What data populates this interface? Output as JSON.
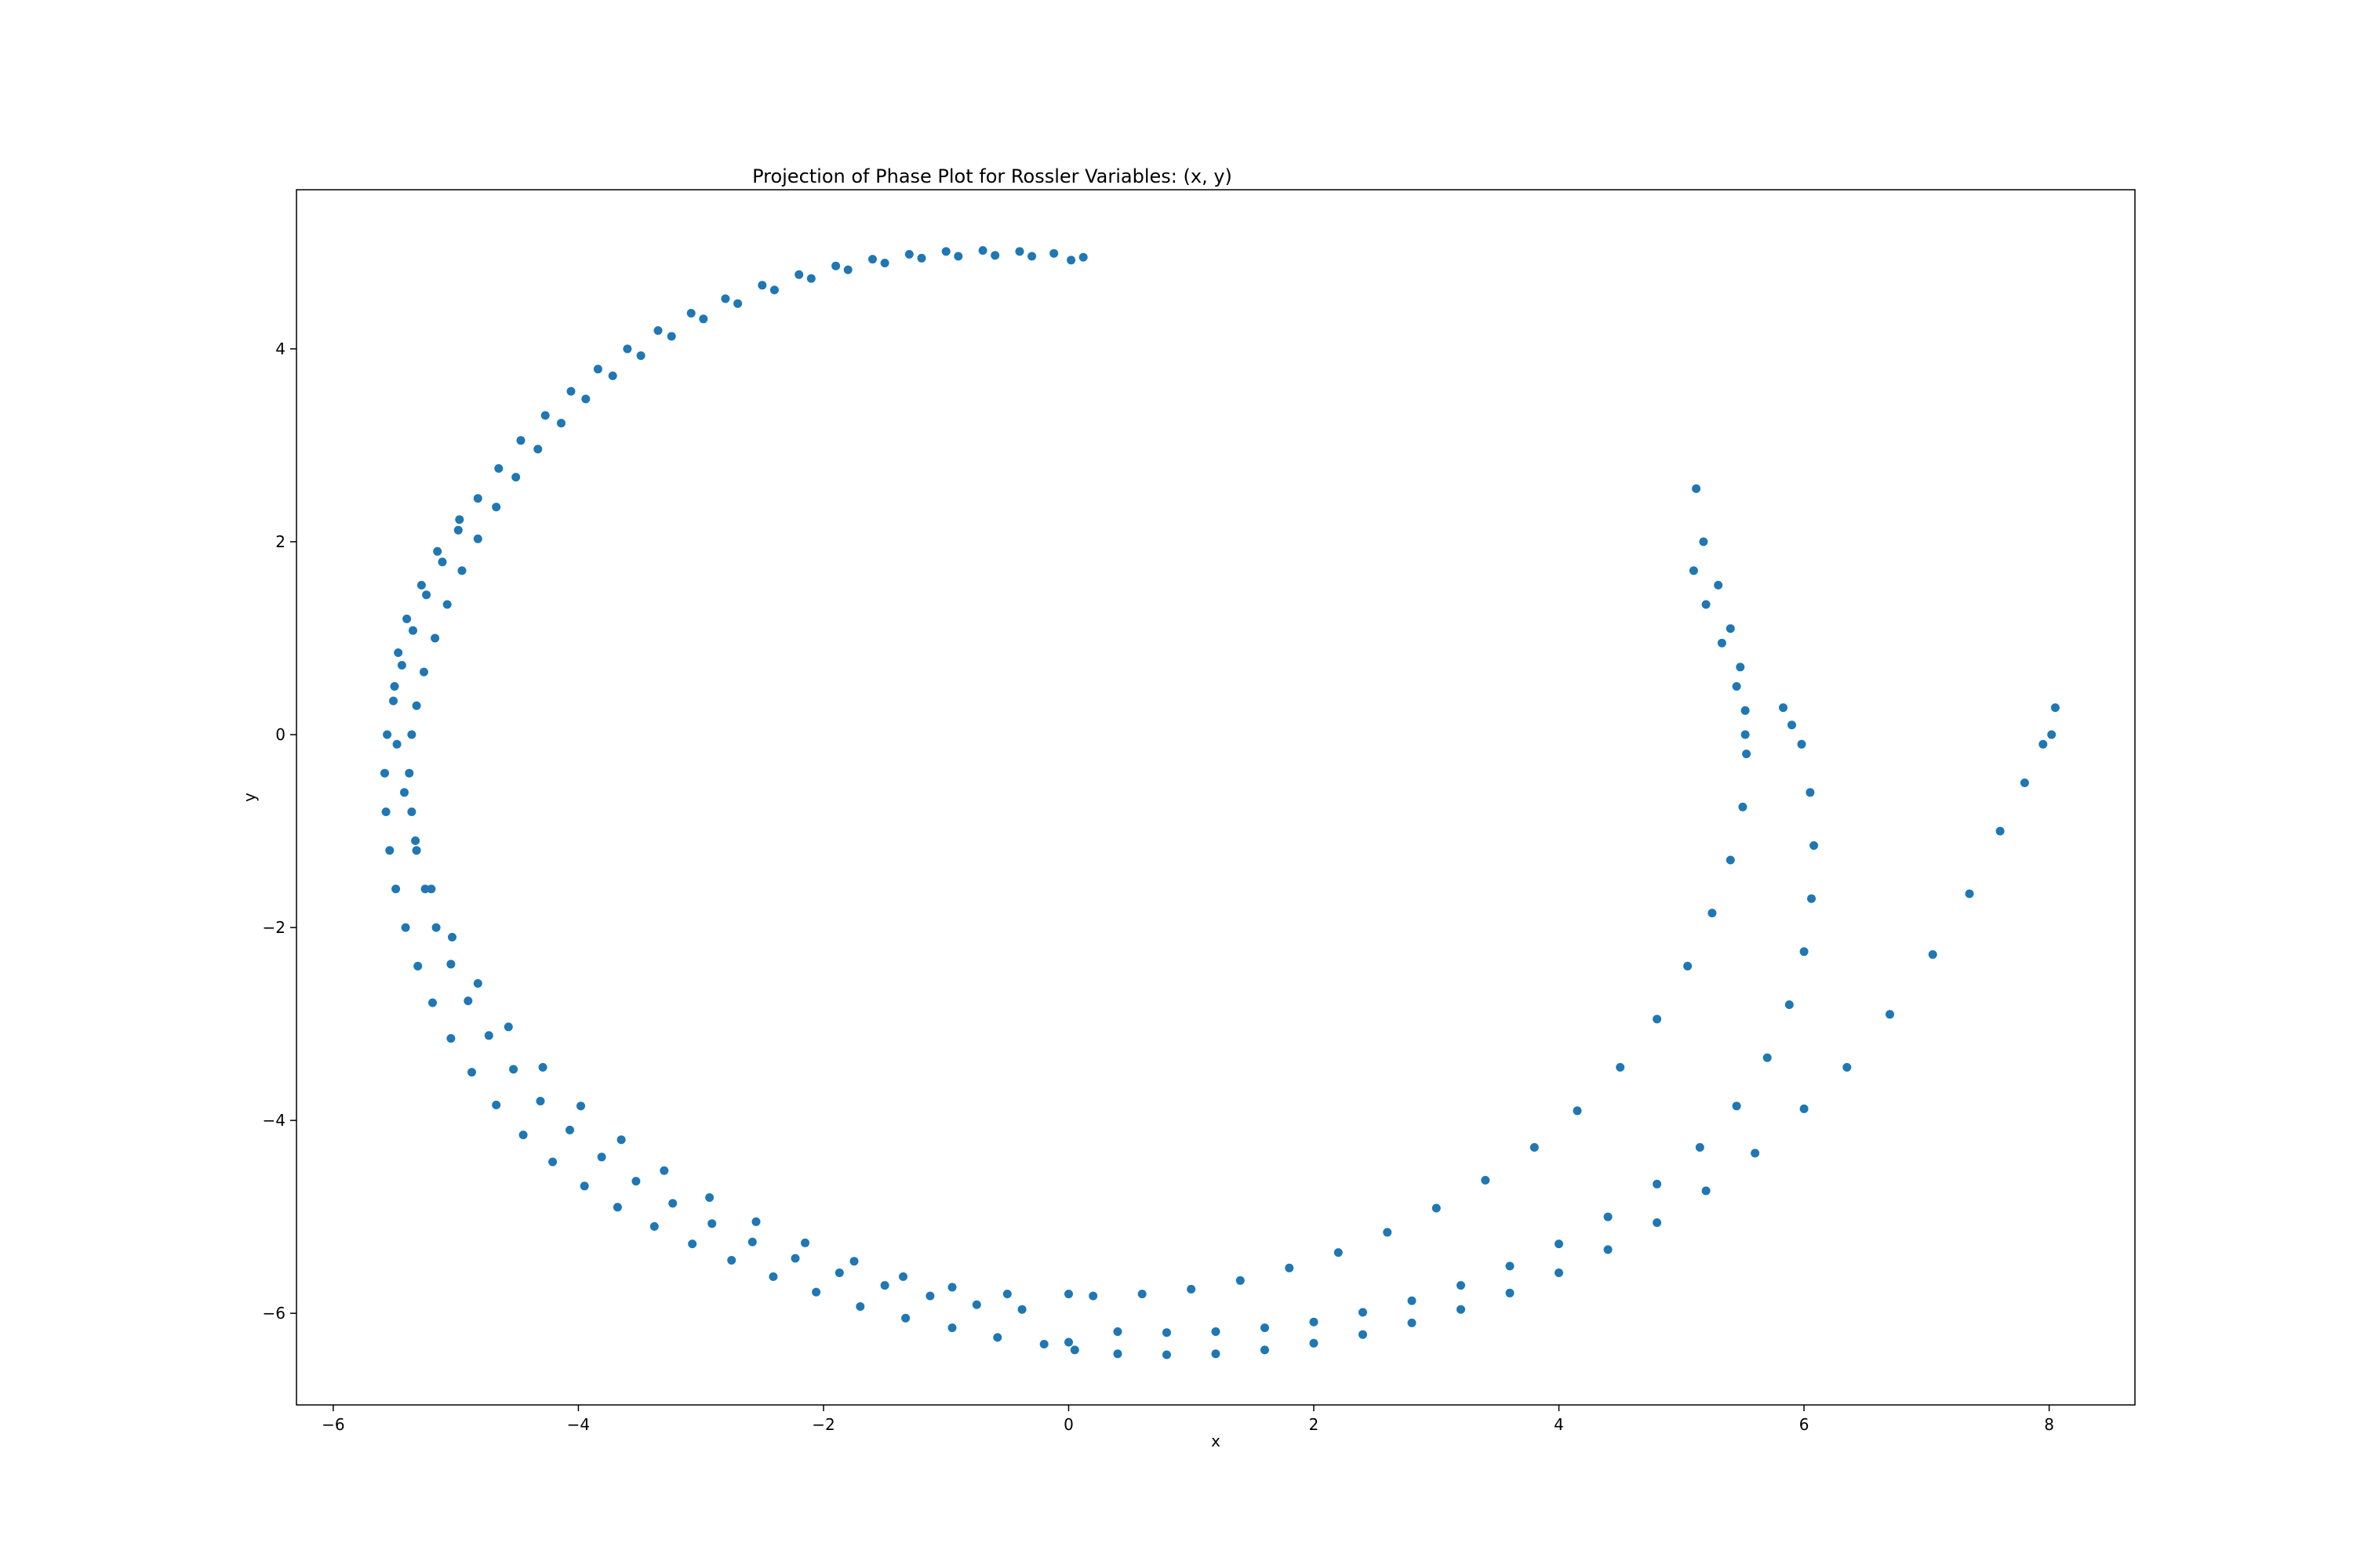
{
  "chart_data": {
    "type": "scatter",
    "title": "Projection of Phase Plot for Rossler Variables: (x, y)",
    "xlabel": "x",
    "ylabel": "y",
    "xlim": [
      -6.3,
      8.7
    ],
    "ylim": [
      -6.95,
      5.65
    ],
    "x_ticks": [
      -6,
      -4,
      -2,
      0,
      2,
      4,
      6,
      8
    ],
    "y_ticks": [
      -6,
      -4,
      -2,
      0,
      2,
      4
    ],
    "grid": false,
    "legend": "none",
    "marker_color": "#1f77b4",
    "series": [
      {
        "description_points": "x,y pairs",
        "values": [
          [
            0.12,
            4.95
          ],
          [
            -0.12,
            4.99
          ],
          [
            -0.4,
            5.01
          ],
          [
            -0.7,
            5.02
          ],
          [
            -1.0,
            5.01
          ],
          [
            -1.3,
            4.98
          ],
          [
            -1.6,
            4.93
          ],
          [
            -1.9,
            4.86
          ],
          [
            -2.2,
            4.77
          ],
          [
            -2.5,
            4.66
          ],
          [
            -2.8,
            4.52
          ],
          [
            -3.08,
            4.37
          ],
          [
            -3.35,
            4.19
          ],
          [
            -3.6,
            4.0
          ],
          [
            -3.84,
            3.79
          ],
          [
            -4.06,
            3.56
          ],
          [
            -4.27,
            3.31
          ],
          [
            -4.47,
            3.05
          ],
          [
            -4.65,
            2.76
          ],
          [
            -4.82,
            2.45
          ],
          [
            -4.98,
            2.12
          ],
          [
            -5.11,
            1.79
          ],
          [
            -5.24,
            1.45
          ],
          [
            -5.35,
            1.08
          ],
          [
            -5.44,
            0.72
          ],
          [
            -5.51,
            0.35
          ],
          [
            -5.56,
            0.0
          ],
          [
            -5.58,
            -0.4
          ],
          [
            -5.57,
            -0.8
          ],
          [
            -5.54,
            -1.2
          ],
          [
            -5.49,
            -1.6
          ],
          [
            -5.41,
            -2.0
          ],
          [
            -5.31,
            -2.4
          ],
          [
            -5.19,
            -2.78
          ],
          [
            -5.04,
            -3.15
          ],
          [
            -4.87,
            -3.5
          ],
          [
            -4.67,
            -3.84
          ],
          [
            -4.45,
            -4.15
          ],
          [
            -4.21,
            -4.43
          ],
          [
            -3.95,
            -4.68
          ],
          [
            -3.68,
            -4.9
          ],
          [
            -3.38,
            -5.1
          ],
          [
            -3.07,
            -5.28
          ],
          [
            -2.75,
            -5.45
          ],
          [
            -2.41,
            -5.62
          ],
          [
            -2.06,
            -5.78
          ],
          [
            -1.7,
            -5.93
          ],
          [
            -1.33,
            -6.05
          ],
          [
            -0.95,
            -6.15
          ],
          [
            -0.58,
            -6.25
          ],
          [
            -0.2,
            -6.32
          ],
          [
            0.05,
            -6.38
          ],
          [
            0.4,
            -6.42
          ],
          [
            0.8,
            -6.43
          ],
          [
            1.2,
            -6.42
          ],
          [
            1.6,
            -6.38
          ],
          [
            2.0,
            -6.31
          ],
          [
            2.4,
            -6.22
          ],
          [
            2.8,
            -6.1
          ],
          [
            3.2,
            -5.96
          ],
          [
            3.6,
            -5.79
          ],
          [
            4.0,
            -5.58
          ],
          [
            4.4,
            -5.34
          ],
          [
            4.8,
            -5.06
          ],
          [
            5.2,
            -4.73
          ],
          [
            5.6,
            -4.34
          ],
          [
            6.0,
            -3.88
          ],
          [
            6.35,
            -3.45
          ],
          [
            6.7,
            -2.9
          ],
          [
            7.05,
            -2.28
          ],
          [
            7.35,
            -1.65
          ],
          [
            7.6,
            -1.0
          ],
          [
            7.8,
            -0.5
          ],
          [
            7.95,
            -0.1
          ],
          [
            8.02,
            0.0
          ],
          [
            8.05,
            0.28
          ],
          [
            0.02,
            4.92
          ],
          [
            -0.3,
            4.96
          ],
          [
            -0.6,
            4.97
          ],
          [
            -0.9,
            4.96
          ],
          [
            -1.2,
            4.94
          ],
          [
            -1.5,
            4.89
          ],
          [
            -1.8,
            4.82
          ],
          [
            -2.1,
            4.73
          ],
          [
            -2.4,
            4.61
          ],
          [
            -2.7,
            4.47
          ],
          [
            -2.98,
            4.31
          ],
          [
            -3.24,
            4.13
          ],
          [
            -3.49,
            3.93
          ],
          [
            -3.72,
            3.72
          ],
          [
            -3.94,
            3.48
          ],
          [
            -4.14,
            3.23
          ],
          [
            -4.33,
            2.96
          ],
          [
            -4.51,
            2.67
          ],
          [
            -4.67,
            2.36
          ],
          [
            -4.82,
            2.03
          ],
          [
            -4.95,
            1.7
          ],
          [
            -5.07,
            1.35
          ],
          [
            -5.17,
            1.0
          ],
          [
            -5.26,
            0.65
          ],
          [
            -5.32,
            0.3
          ],
          [
            -5.36,
            0.0
          ],
          [
            -5.38,
            -0.4
          ],
          [
            -5.36,
            -0.8
          ],
          [
            -5.32,
            -1.2
          ],
          [
            -5.25,
            -1.6
          ],
          [
            -5.16,
            -2.0
          ],
          [
            -5.04,
            -2.38
          ],
          [
            -4.9,
            -2.76
          ],
          [
            -4.73,
            -3.12
          ],
          [
            -4.53,
            -3.47
          ],
          [
            -4.31,
            -3.8
          ],
          [
            -4.07,
            -4.1
          ],
          [
            -3.81,
            -4.38
          ],
          [
            -3.53,
            -4.63
          ],
          [
            -3.23,
            -4.86
          ],
          [
            -2.91,
            -5.07
          ],
          [
            -2.58,
            -5.26
          ],
          [
            -2.23,
            -5.43
          ],
          [
            -1.87,
            -5.58
          ],
          [
            -1.5,
            -5.71
          ],
          [
            -1.13,
            -5.82
          ],
          [
            -0.75,
            -5.91
          ],
          [
            -0.38,
            -5.96
          ],
          [
            0.0,
            -6.3
          ],
          [
            0.4,
            -6.19
          ],
          [
            0.8,
            -6.2
          ],
          [
            1.2,
            -6.19
          ],
          [
            1.6,
            -6.15
          ],
          [
            2.0,
            -6.09
          ],
          [
            2.4,
            -5.99
          ],
          [
            2.8,
            -5.87
          ],
          [
            3.2,
            -5.71
          ],
          [
            3.6,
            -5.51
          ],
          [
            4.0,
            -5.28
          ],
          [
            4.4,
            -5.0
          ],
          [
            4.8,
            -4.66
          ],
          [
            5.15,
            -4.28
          ],
          [
            5.45,
            -3.85
          ],
          [
            5.7,
            -3.35
          ],
          [
            5.88,
            -2.8
          ],
          [
            6.0,
            -2.25
          ],
          [
            6.06,
            -1.7
          ],
          [
            6.08,
            -1.15
          ],
          [
            6.05,
            -0.6
          ],
          [
            5.98,
            -0.1
          ],
          [
            5.9,
            0.1
          ],
          [
            5.83,
            0.28
          ],
          [
            -4.97,
            2.23
          ],
          [
            -5.15,
            1.9
          ],
          [
            -5.28,
            1.55
          ],
          [
            -5.4,
            1.2
          ],
          [
            -5.47,
            0.85
          ],
          [
            -5.5,
            0.5
          ],
          [
            -5.48,
            -0.1
          ],
          [
            -5.42,
            -0.6
          ],
          [
            -5.33,
            -1.1
          ],
          [
            -5.2,
            -1.6
          ],
          [
            -5.03,
            -2.1
          ],
          [
            -4.82,
            -2.58
          ],
          [
            -4.57,
            -3.03
          ],
          [
            -4.29,
            -3.45
          ],
          [
            -3.98,
            -3.85
          ],
          [
            -3.65,
            -4.2
          ],
          [
            -3.3,
            -4.52
          ],
          [
            -2.93,
            -4.8
          ],
          [
            -2.55,
            -5.05
          ],
          [
            -2.15,
            -5.27
          ],
          [
            -1.75,
            -5.46
          ],
          [
            -1.35,
            -5.62
          ],
          [
            -0.95,
            -5.73
          ],
          [
            -0.5,
            -5.8
          ],
          [
            0.0,
            -5.8
          ],
          [
            0.2,
            -5.82
          ],
          [
            0.6,
            -5.8
          ],
          [
            1.0,
            -5.75
          ],
          [
            1.4,
            -5.66
          ],
          [
            1.8,
            -5.53
          ],
          [
            2.2,
            -5.37
          ],
          [
            2.6,
            -5.16
          ],
          [
            3.0,
            -4.91
          ],
          [
            3.4,
            -4.62
          ],
          [
            3.8,
            -4.28
          ],
          [
            4.15,
            -3.9
          ],
          [
            4.5,
            -3.45
          ],
          [
            4.8,
            -2.95
          ],
          [
            5.05,
            -2.4
          ],
          [
            5.25,
            -1.85
          ],
          [
            5.4,
            -1.3
          ],
          [
            5.5,
            -0.75
          ],
          [
            5.53,
            -0.2
          ],
          [
            5.52,
            0.25
          ],
          [
            5.48,
            0.7
          ],
          [
            5.4,
            1.1
          ],
          [
            5.3,
            1.55
          ],
          [
            5.18,
            2.0
          ],
          [
            5.12,
            2.55
          ],
          [
            5.1,
            1.7
          ],
          [
            5.2,
            1.35
          ],
          [
            5.33,
            0.95
          ],
          [
            5.45,
            0.5
          ],
          [
            5.52,
            0.0
          ]
        ]
      }
    ]
  }
}
